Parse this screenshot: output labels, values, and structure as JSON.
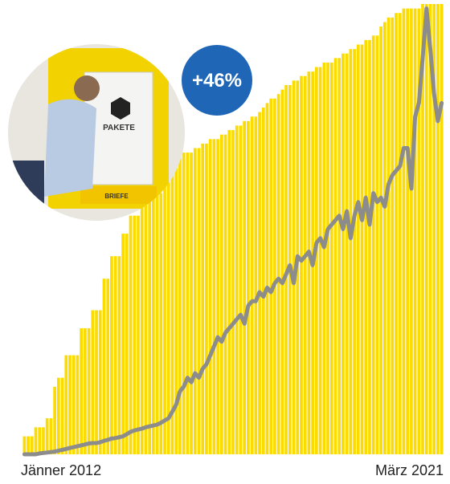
{
  "chart_data": {
    "type": "bar",
    "annotation": "+46%",
    "categories": [
      "Jänner 2012",
      null,
      null,
      null,
      null,
      null,
      null,
      null,
      null,
      null,
      null,
      null,
      null,
      null,
      null,
      null,
      null,
      null,
      null,
      null,
      null,
      null,
      null,
      null,
      null,
      null,
      null,
      null,
      null,
      null,
      null,
      null,
      null,
      null,
      null,
      null,
      null,
      null,
      null,
      null,
      null,
      null,
      null,
      null,
      null,
      null,
      null,
      null,
      null,
      null,
      null,
      null,
      null,
      null,
      null,
      null,
      null,
      null,
      null,
      null,
      null,
      null,
      null,
      null,
      null,
      null,
      null,
      null,
      null,
      null,
      null,
      null,
      null,
      null,
      null,
      null,
      null,
      null,
      null,
      null,
      null,
      null,
      null,
      null,
      null,
      null,
      null,
      null,
      null,
      null,
      null,
      null,
      null,
      null,
      null,
      null,
      null,
      null,
      null,
      null,
      null,
      null,
      null,
      null,
      null,
      null,
      null,
      null,
      null,
      null,
      "März 2021"
    ],
    "ylim": [
      0,
      100
    ],
    "series": [
      {
        "type": "bar",
        "color": "#fcdc00",
        "values": [
          4,
          4,
          4,
          6,
          6,
          6,
          8,
          8,
          15,
          17,
          17,
          22,
          22,
          22,
          22,
          28,
          28,
          28,
          32,
          32,
          32,
          39,
          39,
          44,
          44,
          44,
          49,
          49,
          53,
          53,
          53,
          56,
          56,
          56,
          58,
          58,
          58,
          65,
          65,
          65,
          66,
          66,
          67,
          67,
          67,
          68,
          68,
          69,
          69,
          70,
          70,
          70,
          71,
          71,
          72,
          72,
          73,
          73,
          74,
          74,
          75,
          75,
          76,
          77,
          78,
          79,
          79,
          80,
          81,
          82,
          82,
          83,
          83,
          84,
          84,
          85,
          85,
          86,
          86,
          87,
          87,
          87,
          88,
          88,
          89,
          89,
          90,
          90,
          91,
          91,
          92,
          92,
          93,
          93,
          95,
          96,
          97,
          97,
          98,
          98,
          99,
          99,
          99,
          99,
          99,
          100,
          100,
          100,
          100,
          100,
          100
        ]
      },
      {
        "type": "line",
        "color": "#8c8c8c",
        "values": [
          0,
          0,
          0,
          0,
          0.2,
          0.3,
          0.4,
          0.5,
          0.6,
          0.8,
          1,
          1.2,
          1.4,
          1.6,
          1.8,
          2,
          2.2,
          2.4,
          2.5,
          2.5,
          2.7,
          3,
          3.2,
          3.5,
          3.6,
          3.8,
          4,
          4.5,
          5,
          5.3,
          5.5,
          5.7,
          6,
          6.2,
          6.4,
          6.6,
          7,
          7.5,
          8,
          9.5,
          11,
          14,
          15,
          17,
          16,
          18,
          17,
          19,
          20,
          22,
          24,
          26,
          25,
          27,
          28,
          29,
          30,
          31,
          29,
          33,
          34,
          34,
          36,
          35,
          37,
          36,
          38,
          39,
          38,
          40,
          42,
          38,
          44,
          43,
          44,
          45,
          42,
          47,
          48,
          46,
          50,
          51,
          52,
          53,
          50,
          54,
          48,
          53,
          56,
          52,
          57,
          51,
          58,
          56,
          57,
          55,
          60,
          62,
          63,
          64,
          68,
          68,
          59,
          75,
          78,
          88,
          99,
          90,
          80,
          74,
          78
        ]
      }
    ]
  }
}
